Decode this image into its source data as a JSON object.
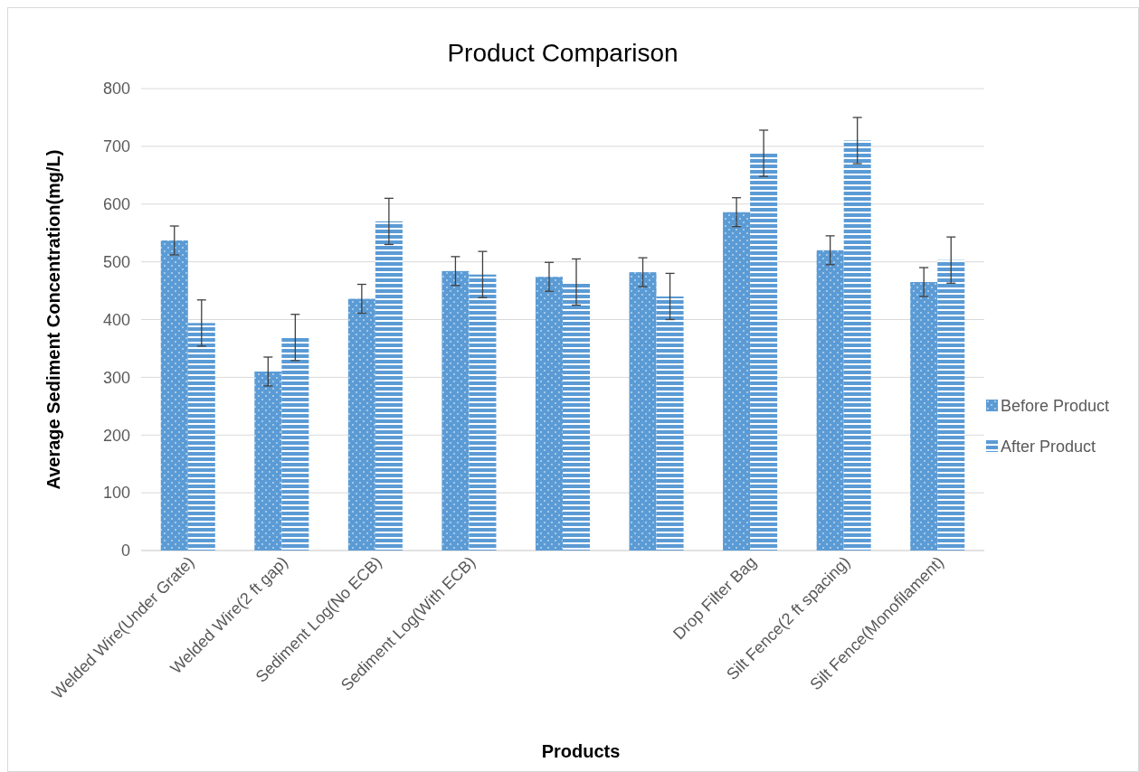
{
  "chart_data": {
    "type": "bar",
    "title": "Product Comparison",
    "xlabel": "Products",
    "ylabel": "Average Sediment Concentration(mg/L)",
    "categories": [
      "Welded Wire(Under Grate)",
      "Welded Wire(2 ft gap)",
      "Sediment Log(No ECB)",
      "Sediment Log(With ECB)",
      null,
      null,
      "Drop Filter Bag",
      "Silt Fence(2 ft spacing)",
      "Silt Fence(Monofilament)"
    ],
    "series": [
      {
        "name": "Before Product",
        "color": "#5b9bd5",
        "values": [
          537,
          310,
          436,
          484,
          474,
          482,
          586,
          520,
          465
        ],
        "errors": [
          25,
          25,
          25,
          25,
          25,
          25,
          25,
          25,
          25
        ]
      },
      {
        "name": "After Product",
        "color": "#5b9bd5",
        "values": [
          394,
          369,
          570,
          478,
          465,
          440,
          688,
          710,
          503
        ],
        "errors": [
          40,
          40,
          40,
          40,
          40,
          40,
          40,
          40,
          40
        ]
      }
    ],
    "ylim": [
      0,
      800
    ],
    "yticks": [
      0,
      100,
      200,
      300,
      400,
      500,
      600,
      700,
      800
    ],
    "grid": "y",
    "legend": "right"
  }
}
